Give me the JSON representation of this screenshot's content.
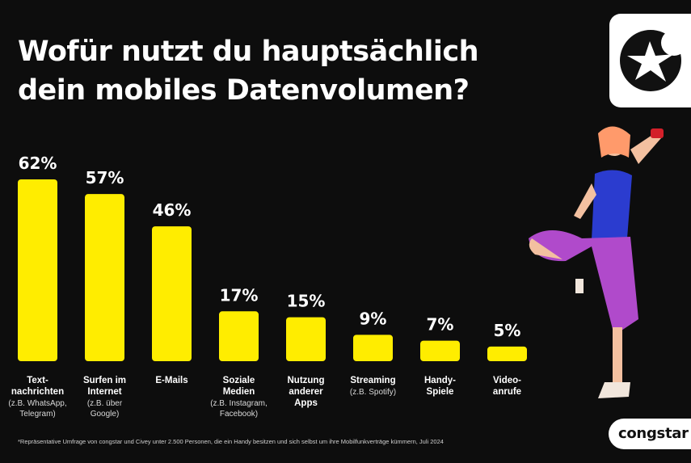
{
  "title_line1": "Wofür nutzt du hauptsächlich",
  "title_line2": "dein mobiles Datenvolumen?",
  "footnote": "*Repräsentative Umfrage von congstar und Civey unter 2.500 Personen, die ein Handy besitzen und sich selbst um ihre Mobilfunkverträge kümmern, Juli 2024",
  "brand": "congstar",
  "logo_icon": "star-icon",
  "colors": {
    "bar": "#ffed00",
    "background": "#0d0d0d",
    "text": "#ffffff"
  },
  "chart_data": {
    "type": "bar",
    "unit": "%",
    "ylim": [
      0,
      62
    ],
    "grid": false,
    "values": [
      62,
      57,
      46,
      17,
      15,
      9,
      7,
      5
    ],
    "value_labels": [
      "62%",
      "57%",
      "46%",
      "17%",
      "15%",
      "9%",
      "7%",
      "5%"
    ],
    "categories": [
      {
        "label": [
          "Text-",
          "nachrichten"
        ],
        "sub": [
          "(z.B. WhatsApp,",
          "Telegram)"
        ]
      },
      {
        "label": [
          "Surfen im",
          "Internet"
        ],
        "sub": [
          "(z.B. über",
          "Google)"
        ]
      },
      {
        "label": [
          "E-Mails"
        ],
        "sub": []
      },
      {
        "label": [
          "Soziale",
          "Medien"
        ],
        "sub": [
          "(z.B. Instagram,",
          "Facebook)"
        ]
      },
      {
        "label": [
          "Nutzung",
          "anderer",
          "Apps"
        ],
        "sub": []
      },
      {
        "label": [
          "Streaming"
        ],
        "sub": [
          "(z.B. Spotify)"
        ]
      },
      {
        "label": [
          "Handy-",
          "Spiele"
        ],
        "sub": []
      },
      {
        "label": [
          "Video-",
          "anrufe"
        ],
        "sub": []
      }
    ]
  }
}
